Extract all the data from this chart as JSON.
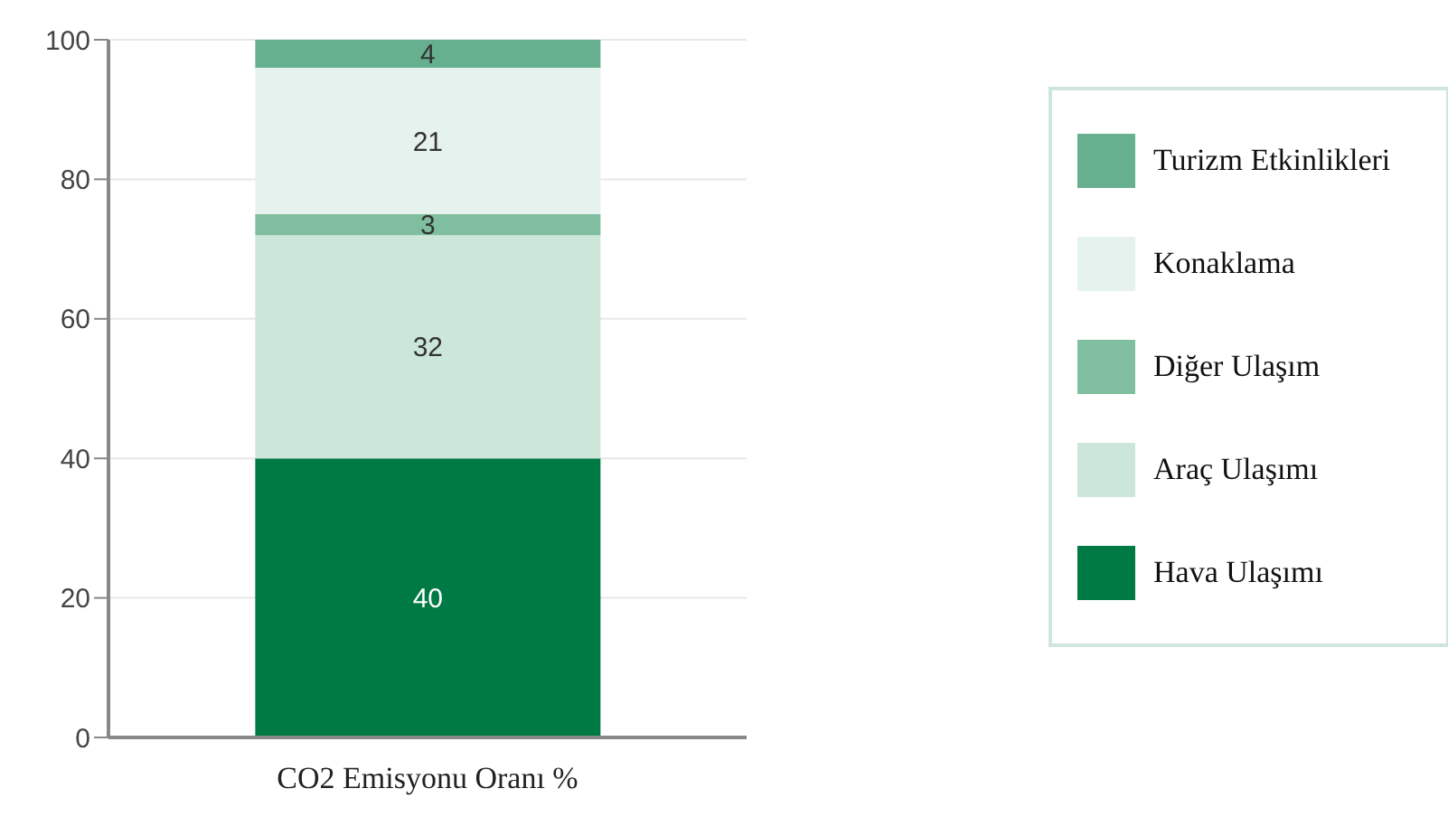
{
  "chart_data": {
    "type": "bar",
    "stacked": true,
    "categories": [
      "CO2 Emisyonu Oranı %"
    ],
    "series": [
      {
        "name": "Hava Ulaşımı",
        "color": "#007a45",
        "values": [
          40
        ]
      },
      {
        "name": "Araç Ulaşımı",
        "color": "#cce6da",
        "values": [
          32
        ]
      },
      {
        "name": "Diğer Ulaşım",
        "color": "#7fbf9f",
        "values": [
          3
        ]
      },
      {
        "name": "Konaklama",
        "color": "#e6f2ee",
        "values": [
          21
        ]
      },
      {
        "name": "Turizm Etkinlikleri",
        "color": "#66b090",
        "values": [
          4
        ]
      }
    ],
    "ylim": [
      0,
      100
    ],
    "yticks": [
      0,
      20,
      40,
      60,
      80,
      100
    ],
    "grid": "y",
    "legend": "right",
    "data_labels": true
  }
}
